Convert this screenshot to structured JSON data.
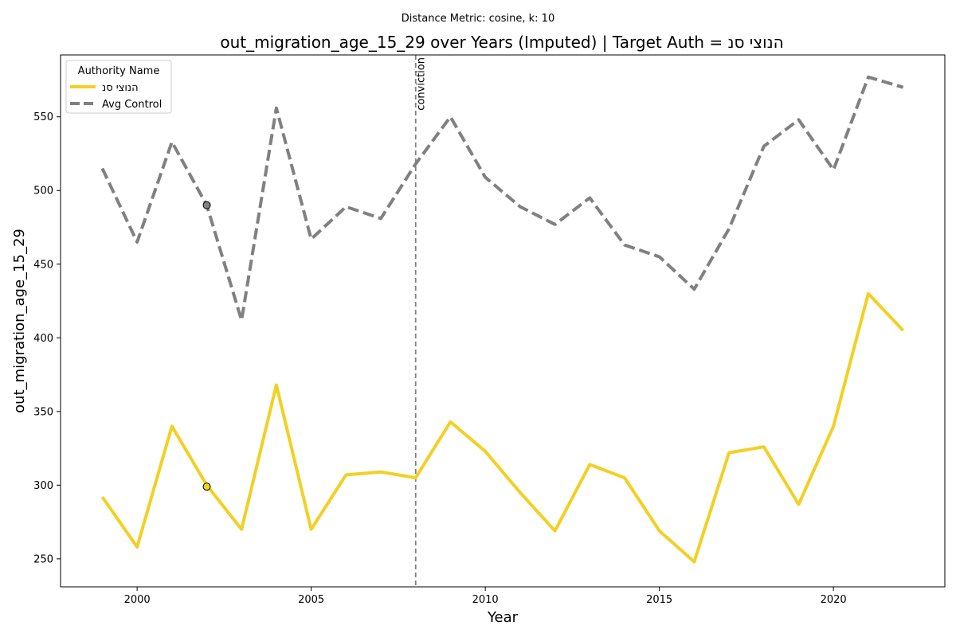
{
  "chart_data": {
    "type": "line",
    "suptitle": "Distance Metric: cosine, k: 10",
    "title": "out_migration_age_15_29 over Years (Imputed) | Target Auth = הנוצי סנ",
    "xlabel": "Year",
    "ylabel": "out_migration_age_15_29",
    "xlim": [
      1997.8,
      2023.2
    ],
    "ylim": [
      231,
      592
    ],
    "xticks": [
      2000,
      2005,
      2010,
      2015,
      2020
    ],
    "yticks": [
      250,
      300,
      350,
      400,
      450,
      500,
      550
    ],
    "grid": false,
    "legend": {
      "title": "Authority Name",
      "placement": "top-left"
    },
    "x": [
      1999,
      2000,
      2001,
      2002,
      2003,
      2004,
      2005,
      2006,
      2007,
      2008,
      2009,
      2010,
      2011,
      2012,
      2013,
      2014,
      2015,
      2016,
      2017,
      2018,
      2019,
      2020,
      2021,
      2022
    ],
    "series": [
      {
        "name": "הנוצי סנ",
        "color": "#f2d024",
        "style": "solid",
        "values": [
          292,
          258,
          340,
          300,
          270,
          368,
          270,
          307,
          309,
          305,
          343,
          323,
          295,
          269,
          314,
          305,
          269,
          248,
          322,
          326,
          287,
          340,
          430,
          405
        ]
      },
      {
        "name": "Avg Control",
        "color": "#808080",
        "style": "dashed",
        "values": [
          515,
          465,
          533,
          490,
          412,
          556,
          467,
          489,
          481,
          518,
          550,
          509,
          489,
          477,
          495,
          463,
          455,
          433,
          474,
          530,
          548,
          514,
          577,
          570
        ]
      }
    ],
    "markers": [
      {
        "x": 2002,
        "y": 490,
        "color": "#808080"
      },
      {
        "x": 2002,
        "y": 299,
        "color": "#f2d024"
      }
    ],
    "vline": {
      "x": 2008,
      "label": "conviction",
      "color": "#808080"
    }
  }
}
